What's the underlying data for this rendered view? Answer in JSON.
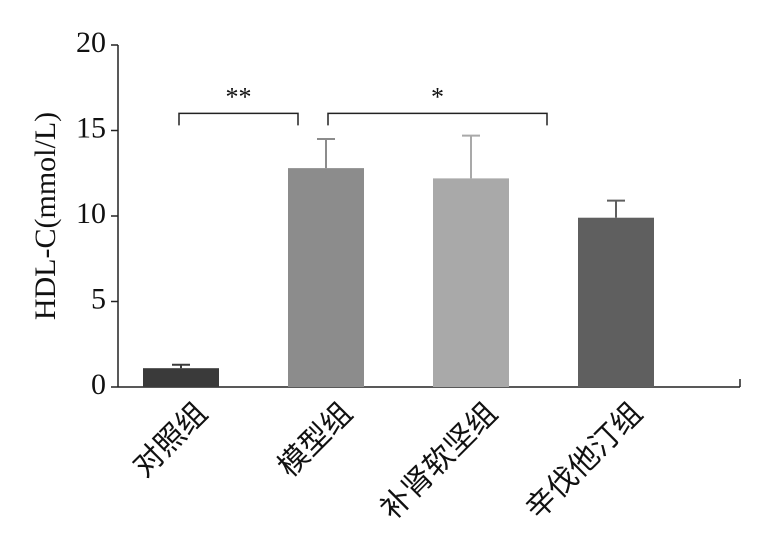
{
  "chart_data": {
    "type": "bar",
    "y_label": "HDL-C(mmol/L)",
    "categories": [
      "对照组",
      "模型组",
      "补肾软坚组",
      "辛伐他汀组"
    ],
    "values": [
      1.1,
      12.8,
      12.2,
      9.9
    ],
    "errors": [
      0.2,
      1.7,
      2.5,
      1.0
    ],
    "colors": [
      "#3a3a3a",
      "#8c8c8c",
      "#a9a9a9",
      "#5f5f5f"
    ],
    "ylim": [
      0,
      20
    ],
    "yticks": [
      0,
      5,
      10,
      15,
      20
    ],
    "annotations": [
      {
        "text": "**",
        "from": "对照组",
        "to": "模型组",
        "y": 16
      },
      {
        "text": "*",
        "from": "模型组",
        "to": "补肾软坚组",
        "y": 16
      }
    ]
  }
}
